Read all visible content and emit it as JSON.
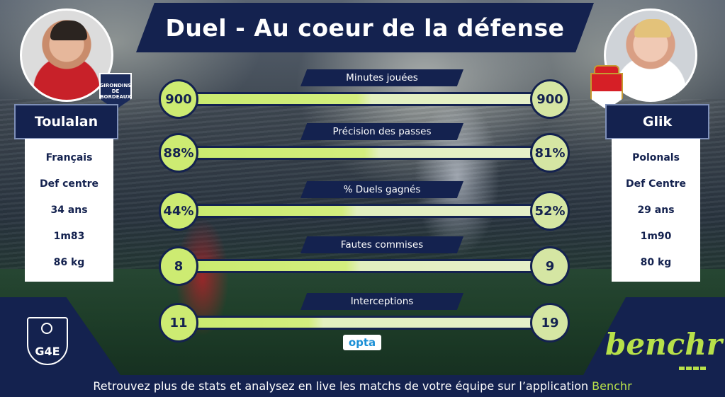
{
  "title": "Duel - Au coeur de la défense",
  "player_left": {
    "name": "Toulalan",
    "club_badge_text": "GIRONDINS DE BORDEAUX",
    "info": [
      "Français",
      "Def centre",
      "34 ans",
      "1m83",
      "86 kg"
    ]
  },
  "player_right": {
    "name": "Glik",
    "info": [
      "Polonals",
      "Def Centre",
      "29 ans",
      "1m90",
      "80 kg"
    ]
  },
  "stats": [
    {
      "label": "Minutes jouées",
      "left": "900",
      "right": "900",
      "left_share": 0.5
    },
    {
      "label": "Précision des passes",
      "left": "88%",
      "right": "81%",
      "left_share": 0.52
    },
    {
      "label": "% Duels gagnés",
      "left": "44%",
      "right": "52%",
      "left_share": 0.46
    },
    {
      "label": "Fautes commises",
      "left": "8",
      "right": "9",
      "left_share": 0.47
    },
    {
      "label": "Interceptions",
      "left": "11",
      "right": "19",
      "left_share": 0.37
    }
  ],
  "opta_label": "opta",
  "logos": {
    "left": "G4E",
    "right": "benchr"
  },
  "footer": {
    "text": "Retrouvez plus de stats et analysez en live les matchs de votre équipe sur l’application",
    "brand": "Benchr"
  },
  "colors": {
    "navy": "#14224f",
    "lime": "#cdeb72",
    "benchr_green": "#b7e04a"
  }
}
